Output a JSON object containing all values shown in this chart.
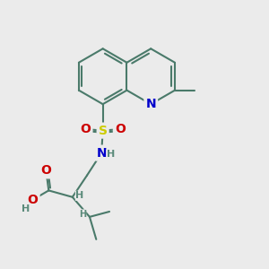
{
  "background_color": "#ebebeb",
  "bond_color": "#4a7a6a",
  "bond_width": 1.5,
  "atom_colors": {
    "N": "#0000cc",
    "O": "#cc0000",
    "S": "#cccc00",
    "H": "#5a8a7a"
  },
  "font_size_atom": 10,
  "fig_size": [
    3.0,
    3.0
  ],
  "dpi": 100
}
